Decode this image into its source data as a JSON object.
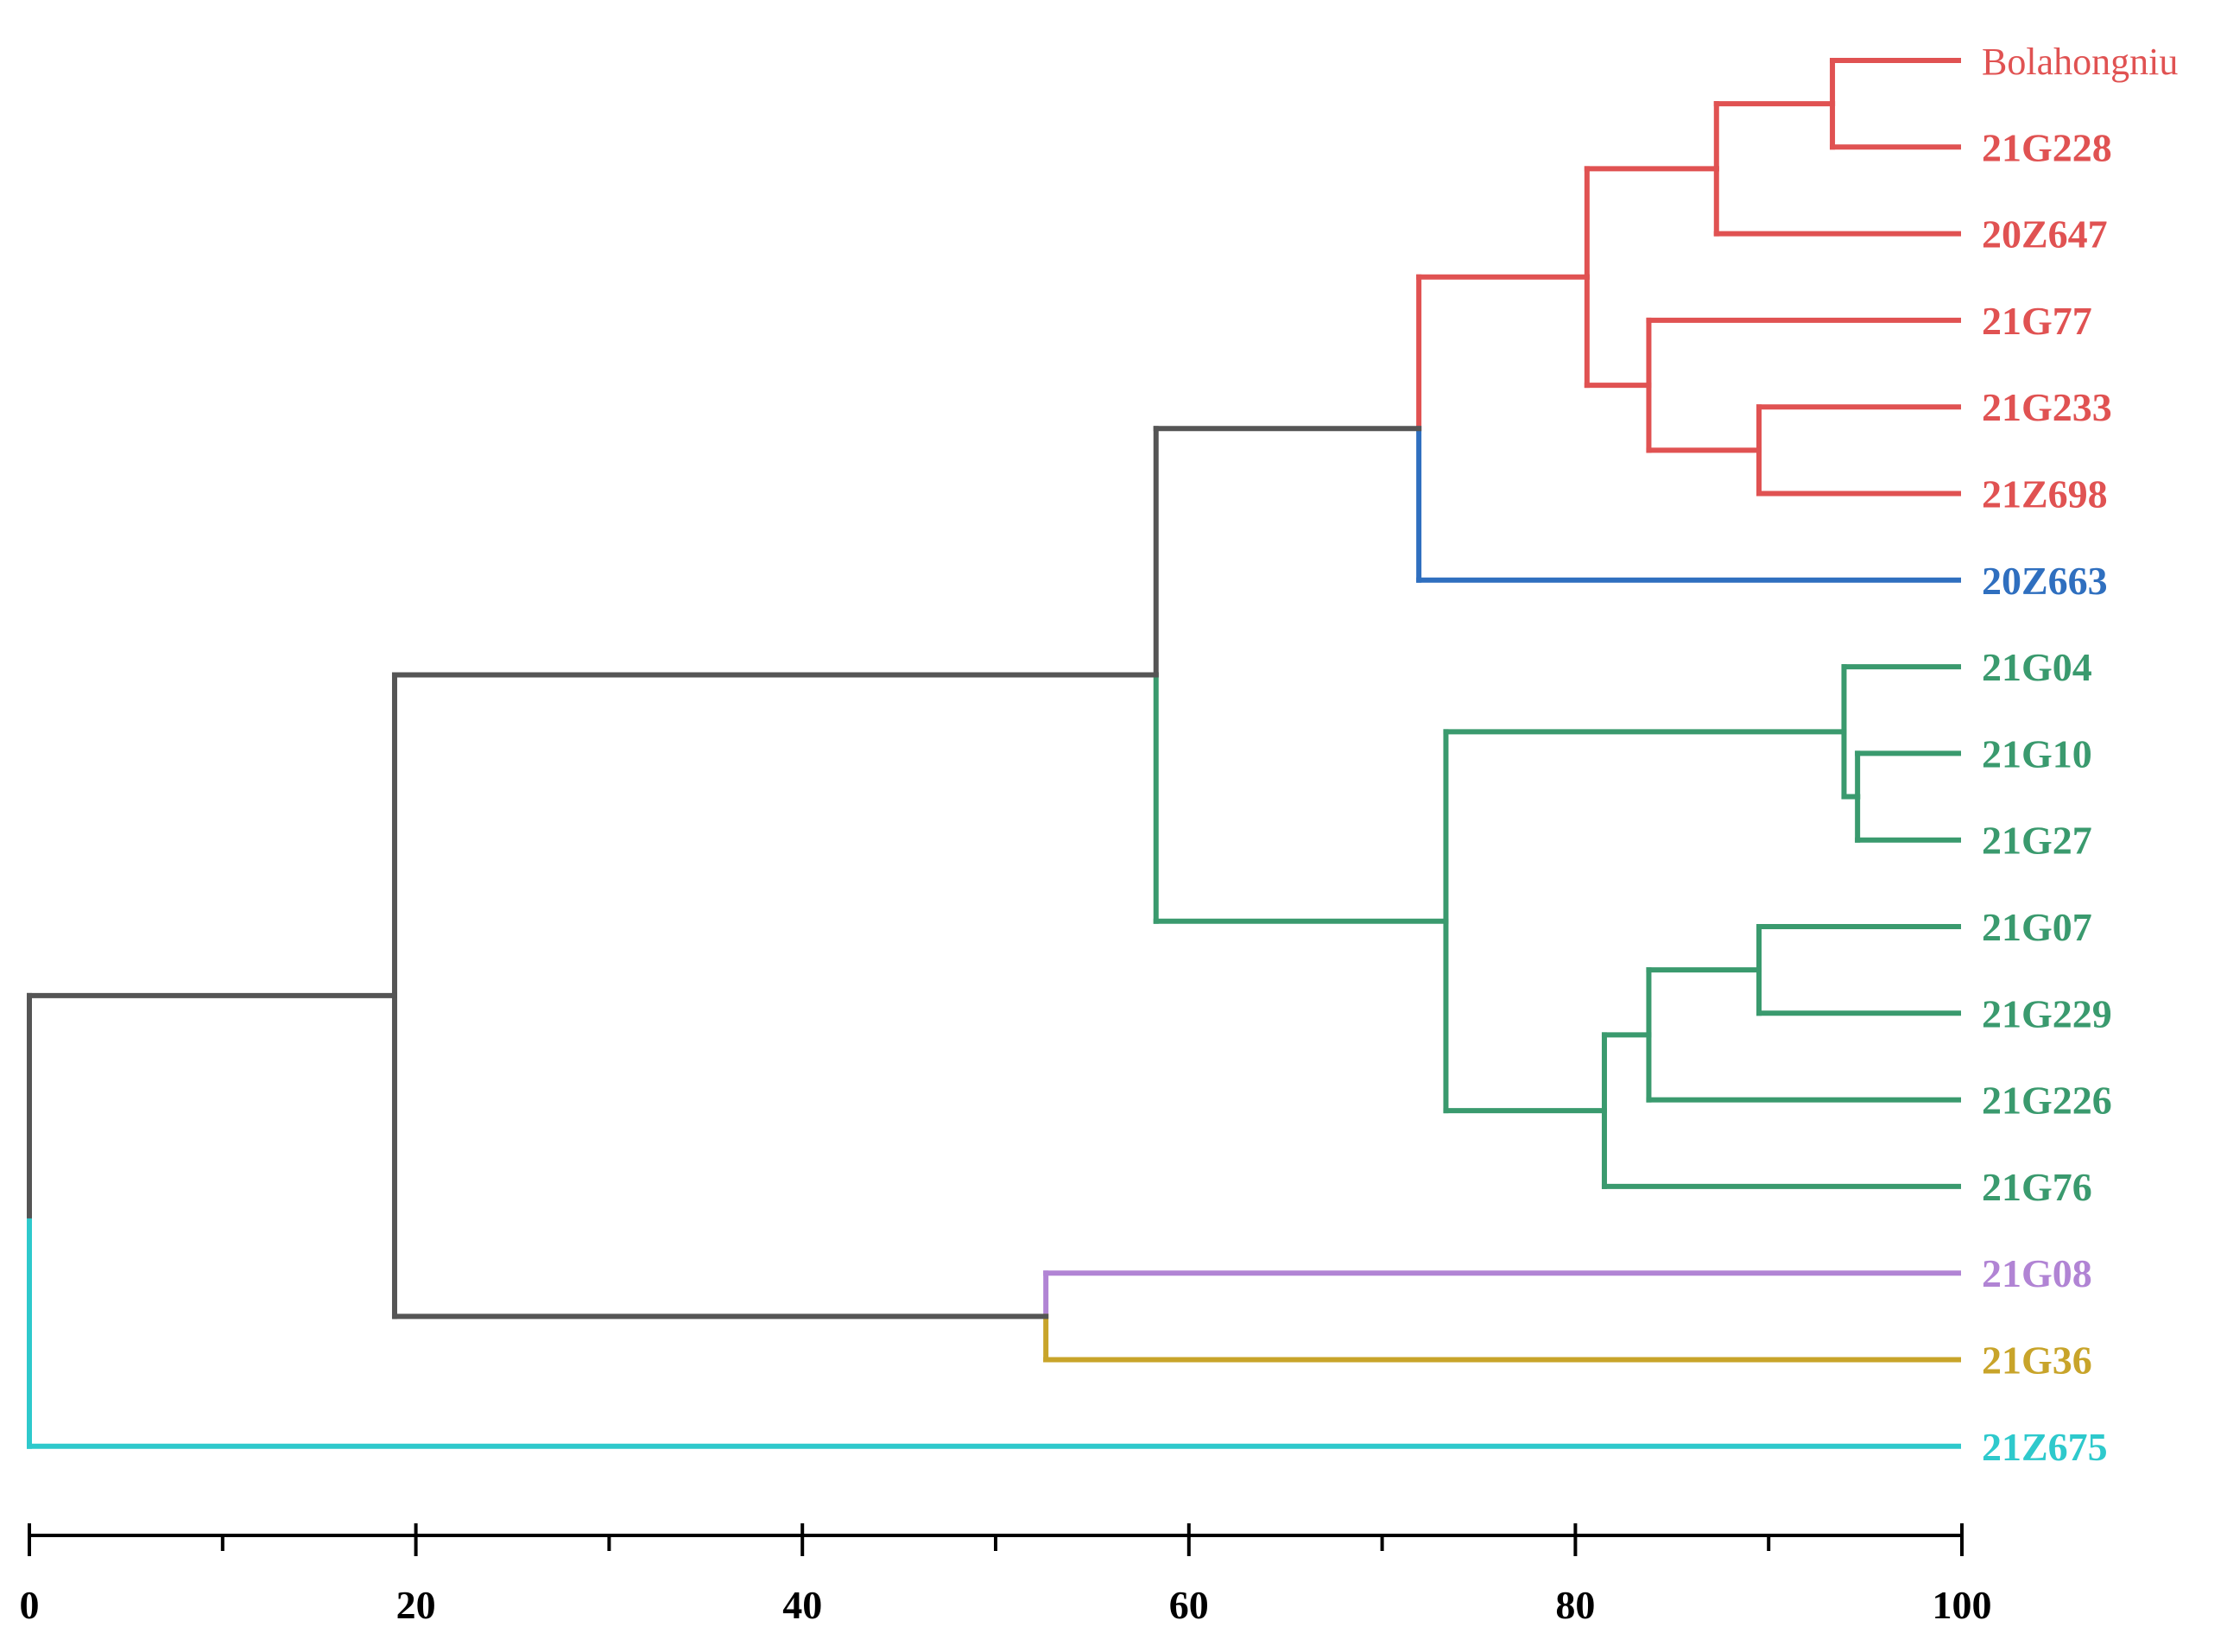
{
  "diagram": {
    "type": "dendrogram",
    "axis": {
      "min": 0,
      "max": 100,
      "major_ticks": [
        0,
        20,
        40,
        60,
        80,
        100
      ],
      "minor_ticks": [
        10,
        30,
        50,
        70,
        90
      ]
    },
    "leaves": [
      {
        "id": "Bolahongniu",
        "label": "Bolahongniu",
        "color": "#e05252",
        "style": "normal"
      },
      {
        "id": "21G228",
        "label": "21G228",
        "color": "#e05252",
        "style": "bold"
      },
      {
        "id": "20Z647",
        "label": "20Z647",
        "color": "#e05252",
        "style": "bold"
      },
      {
        "id": "21G77",
        "label": "21G77",
        "color": "#e05252",
        "style": "bold"
      },
      {
        "id": "21G233",
        "label": "21G233",
        "color": "#e05252",
        "style": "bold"
      },
      {
        "id": "21Z698",
        "label": "21Z698",
        "color": "#e05252",
        "style": "bold"
      },
      {
        "id": "20Z663",
        "label": "20Z663",
        "color": "#2f6fbf",
        "style": "bold"
      },
      {
        "id": "21G04",
        "label": "21G04",
        "color": "#3a9a6e",
        "style": "bold"
      },
      {
        "id": "21G10",
        "label": "21G10",
        "color": "#3a9a6e",
        "style": "bold"
      },
      {
        "id": "21G27",
        "label": "21G27",
        "color": "#3a9a6e",
        "style": "bold"
      },
      {
        "id": "21G07",
        "label": "21G07",
        "color": "#3a9a6e",
        "style": "bold"
      },
      {
        "id": "21G229",
        "label": "21G229",
        "color": "#3a9a6e",
        "style": "bold"
      },
      {
        "id": "21G226",
        "label": "21G226",
        "color": "#3a9a6e",
        "style": "bold"
      },
      {
        "id": "21G76",
        "label": "21G76",
        "color": "#3a9a6e",
        "style": "bold"
      },
      {
        "id": "21G08",
        "label": "21G08",
        "color": "#b184d4",
        "style": "bold"
      },
      {
        "id": "21G36",
        "label": "21G36",
        "color": "#c8a42a",
        "style": "bold"
      },
      {
        "id": "21Z675",
        "label": "21Z675",
        "color": "#2ec9cc",
        "style": "bold"
      }
    ],
    "merges": [
      {
        "id": "m1",
        "children": [
          "Bolahongniu",
          "21G228"
        ],
        "height": 93.3,
        "color": "#e05252"
      },
      {
        "id": "m2",
        "children": [
          "m1",
          "20Z647"
        ],
        "height": 87.3,
        "color": "#e05252"
      },
      {
        "id": "m3",
        "children": [
          "21G233",
          "21Z698"
        ],
        "height": 89.5,
        "color": "#e05252"
      },
      {
        "id": "m4",
        "children": [
          "21G77",
          "m3"
        ],
        "height": 83.8,
        "color": "#e05252"
      },
      {
        "id": "m5",
        "children": [
          "m2",
          "m4"
        ],
        "height": 80.6,
        "color": "#e05252"
      },
      {
        "id": "m6",
        "children": [
          "m5",
          "20Z663"
        ],
        "height": 71.9,
        "color": "#555555"
      },
      {
        "id": "m7",
        "children": [
          "21G10",
          "21G27"
        ],
        "height": 94.6,
        "color": "#3a9a6e"
      },
      {
        "id": "m8",
        "children": [
          "21G04",
          "m7"
        ],
        "height": 93.9,
        "color": "#3a9a6e"
      },
      {
        "id": "m9",
        "children": [
          "21G07",
          "21G229"
        ],
        "height": 89.5,
        "color": "#3a9a6e"
      },
      {
        "id": "m10",
        "children": [
          "m9",
          "21G226"
        ],
        "height": 83.8,
        "color": "#3a9a6e"
      },
      {
        "id": "m11",
        "children": [
          "m10",
          "21G76"
        ],
        "height": 81.5,
        "color": "#3a9a6e"
      },
      {
        "id": "m12",
        "children": [
          "m8",
          "m11"
        ],
        "height": 73.3,
        "color": "#3a9a6e"
      },
      {
        "id": "m13",
        "children": [
          "m6",
          "m12"
        ],
        "height": 58.3,
        "color": "#555555"
      },
      {
        "id": "m14",
        "children": [
          "21G08",
          "21G36"
        ],
        "height": 52.6,
        "color": "#555555"
      },
      {
        "id": "m15",
        "children": [
          "m13",
          "m14"
        ],
        "height": 18.9,
        "color": "#555555"
      },
      {
        "id": "root",
        "children": [
          "m15",
          "21Z675"
        ],
        "height": 0,
        "color": "#555555"
      }
    ]
  }
}
